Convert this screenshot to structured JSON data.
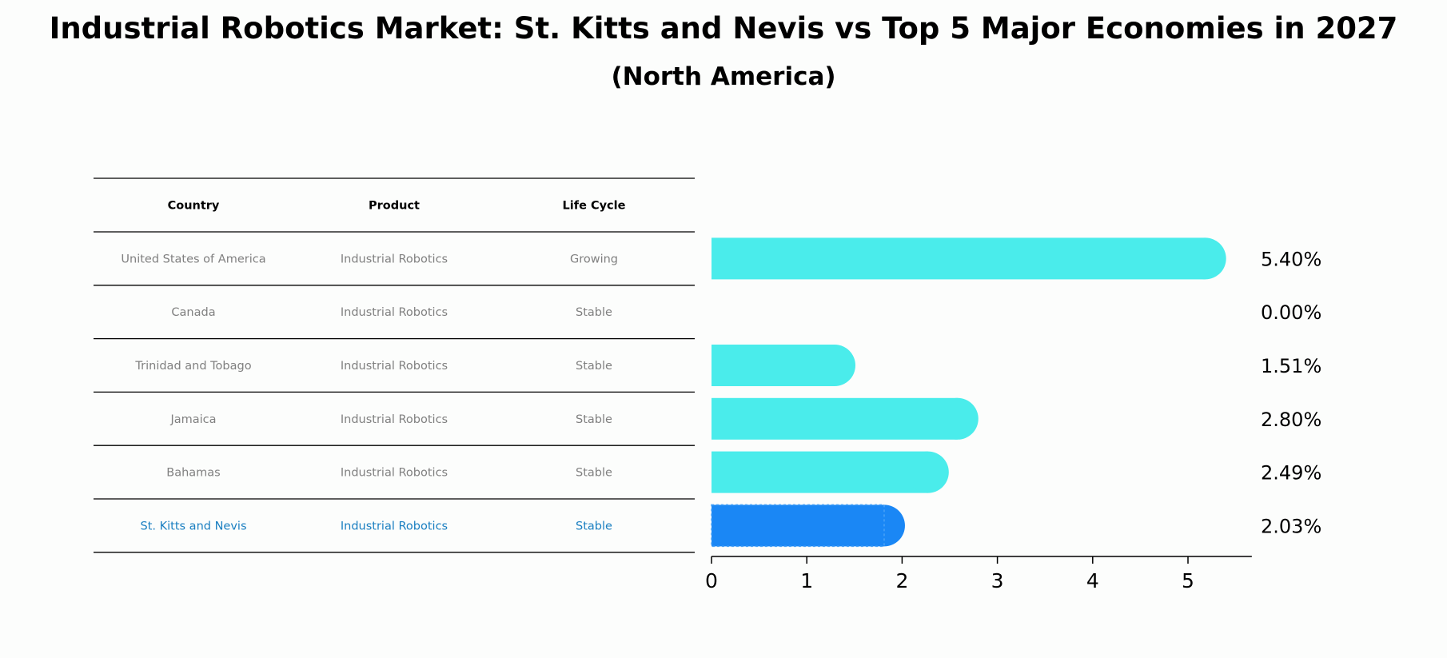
{
  "title": "Industrial Robotics Market: St. Kitts and Nevis vs Top 5 Major Economies in 2027",
  "subtitle": "(North America)",
  "colors": {
    "bar": "#4aeceb",
    "highlight_bar": "#1a87f5",
    "highlight_text": "#1a7fc1",
    "muted_text": "#808080",
    "rule": "#000000"
  },
  "table": {
    "headers": [
      "Country",
      "Product",
      "Life Cycle"
    ],
    "rows": [
      [
        "United States of America",
        "Industrial Robotics",
        "Growing"
      ],
      [
        "Canada",
        "Industrial Robotics",
        "Stable"
      ],
      [
        "Trinidad and Tobago",
        "Industrial Robotics",
        "Stable"
      ],
      [
        "Jamaica",
        "Industrial Robotics",
        "Stable"
      ],
      [
        "Bahamas",
        "Industrial Robotics",
        "Stable"
      ],
      [
        "St. Kitts and Nevis",
        "Industrial Robotics",
        "Stable"
      ]
    ],
    "highlight_row": 5
  },
  "chart_data": {
    "type": "bar",
    "orientation": "horizontal",
    "categories": [
      "United States of America",
      "Canada",
      "Trinidad and Tobago",
      "Jamaica",
      "Bahamas",
      "St. Kitts and Nevis"
    ],
    "values": [
      5.4,
      0.0,
      1.51,
      2.8,
      2.49,
      2.03
    ],
    "value_labels": [
      "5.40%",
      "0.00%",
      "1.51%",
      "2.80%",
      "2.49%",
      "2.03%"
    ],
    "highlight_index": 5,
    "xlim": [
      0,
      5.67
    ],
    "xticks": [
      0,
      1,
      2,
      3,
      4,
      5
    ],
    "grid": false
  }
}
